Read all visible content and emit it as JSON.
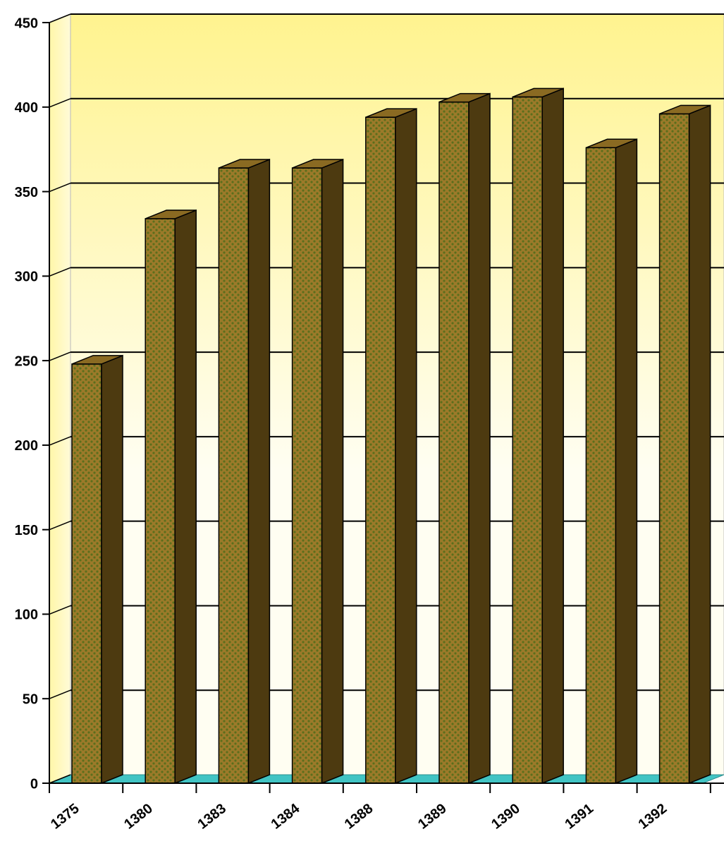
{
  "chart_data": {
    "type": "bar",
    "title": "",
    "xlabel": "",
    "ylabel": "",
    "categories": [
      "1375",
      "1380",
      "1383",
      "1384",
      "1388",
      "1389",
      "1390",
      "1391",
      "1392"
    ],
    "values": [
      248,
      334,
      364,
      364,
      394,
      403,
      406,
      376,
      396
    ],
    "ylim": [
      0,
      450
    ],
    "yticks": [
      "0",
      "50",
      "100",
      "150",
      "200",
      "250",
      "300",
      "350",
      "400",
      "450"
    ],
    "grid": true,
    "legend": "none",
    "colors": {
      "bar_front": "#9c7a2a",
      "bar_front_dots": "#5c6e1c",
      "bar_side": "#4d3a10",
      "bar_top": "#8a6a22",
      "wall_top": "#fff38f",
      "wall_bottom": "#fffef2",
      "floor": "#41c4c4",
      "grid": "#000000"
    }
  }
}
